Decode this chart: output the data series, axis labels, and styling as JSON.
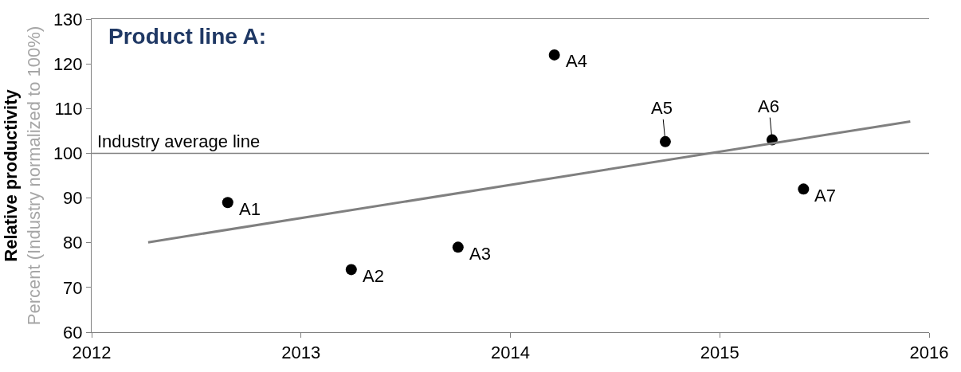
{
  "chart_data": {
    "type": "scatter",
    "title": "Product line A:",
    "ylabel": "Relative productivity\nPercent (Industry normalized to 100%)",
    "series": [
      {
        "color": "#000000",
        "x": [
          2012.65,
          2013.24,
          2013.75,
          2014.21,
          2014.74,
          2015.25,
          2015.4
        ],
        "values": [
          89,
          74,
          79,
          122,
          102.6,
          103,
          92
        ]
      },
      {
        "type": "line",
        "marker": "none",
        "color": "#808080",
        "x": [
          2012.27,
          2015.91
        ],
        "values": [
          80.1,
          107.1
        ]
      }
    ],
    "annotations": [
      {
        "text": "A1",
        "x": 2012.65,
        "y": 89
      },
      {
        "text": "A2",
        "x": 2013.24,
        "y": 74
      },
      {
        "text": "A3",
        "x": 2013.75,
        "y": 79
      },
      {
        "text": "A4",
        "x": 2014.21,
        "y": 122
      },
      {
        "text": "A5",
        "x": 2014.74,
        "y": 102.6
      },
      {
        "text": "A6",
        "x": 2015.25,
        "y": 103
      },
      {
        "text": "A7",
        "x": 2015.4,
        "y": 92
      }
    ],
    "ref_lines": [
      {
        "axis": "y",
        "value": 100,
        "label": "Industry average line",
        "color": "#808080"
      }
    ],
    "xlim": [
      2012,
      2016
    ],
    "xticks": [
      2012,
      2013,
      2014,
      2015,
      2016
    ],
    "ylim": [
      60,
      130
    ],
    "yticks": [
      60,
      70,
      80,
      90,
      100,
      110,
      120,
      130
    ],
    "marker": "circle"
  }
}
